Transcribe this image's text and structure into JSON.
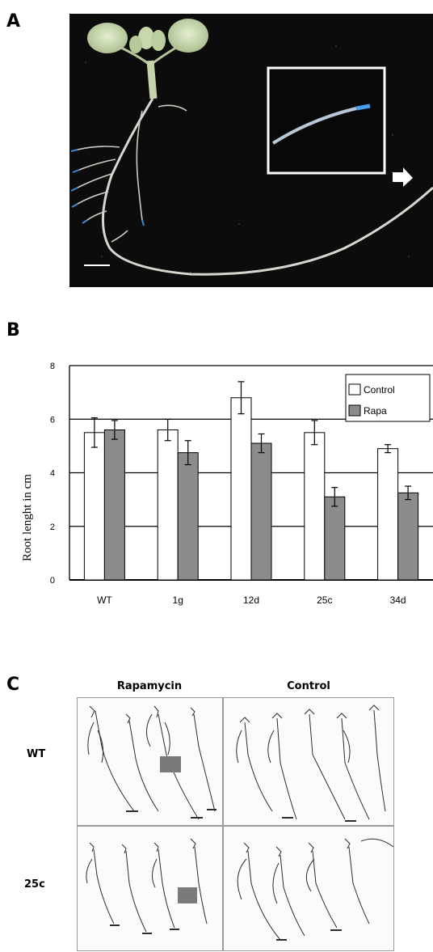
{
  "figure": {
    "panels": {
      "a": {
        "letter": "A"
      },
      "b": {
        "letter": "B"
      },
      "c": {
        "letter": "C"
      }
    }
  },
  "chart_data": {
    "type": "bar",
    "ylabel": "Root lenght in  cm",
    "xlabel": "",
    "title": "",
    "ylim": [
      0,
      8
    ],
    "yticks": [
      "0",
      "2",
      "4",
      "6",
      "8"
    ],
    "grid": true,
    "legend_position": "top-right",
    "categories": [
      "WT",
      "1g",
      "12d",
      "25c",
      "34d"
    ],
    "series": [
      {
        "name": "Control",
        "color": "#ffffff",
        "values": [
          5.5,
          5.6,
          6.8,
          5.5,
          4.9
        ],
        "errors": [
          0.55,
          0.4,
          0.6,
          0.45,
          0.15
        ]
      },
      {
        "name": "Rapa",
        "color": "#8c8c8c",
        "values": [
          5.6,
          4.75,
          5.1,
          3.1,
          3.25
        ],
        "errors": [
          0.35,
          0.45,
          0.35,
          0.35,
          0.25
        ]
      }
    ]
  },
  "panel_c": {
    "columns": [
      "Rapamycin",
      "Control"
    ],
    "rows": [
      "WT",
      "25c"
    ]
  }
}
